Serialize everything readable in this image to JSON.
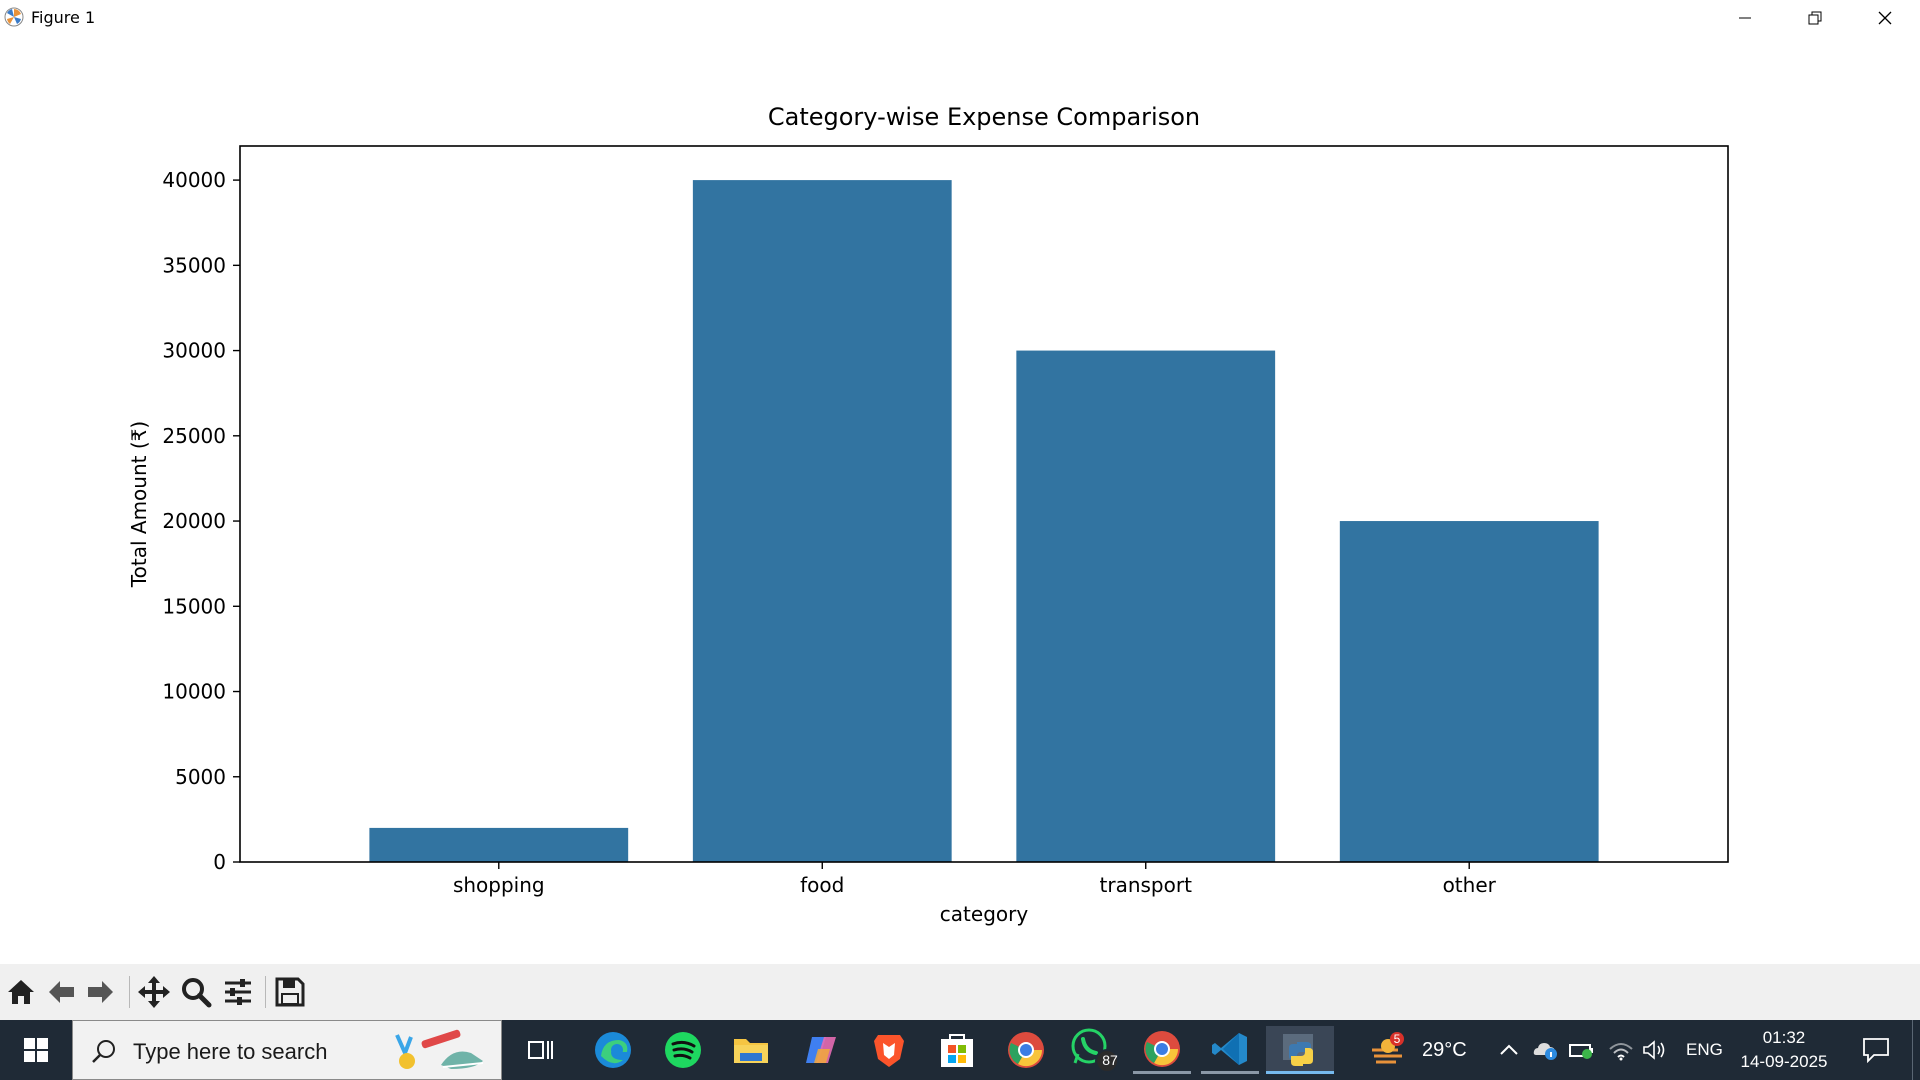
{
  "window": {
    "title": "Figure 1",
    "controls": [
      "minimize",
      "restore",
      "close"
    ]
  },
  "chart_data": {
    "type": "bar",
    "title": "Category-wise Expense Comparison",
    "xlabel": "category",
    "ylabel": "Total Amount (₹)",
    "categories": [
      "shopping",
      "food",
      "transport",
      "other"
    ],
    "values": [
      2000,
      40000,
      30000,
      20000
    ],
    "ylim": [
      0,
      42000
    ],
    "yticks": [
      0,
      5000,
      10000,
      15000,
      20000,
      25000,
      30000,
      35000,
      40000
    ],
    "bar_color": "#3274a1",
    "grid": false,
    "legend": "none"
  },
  "toolbar": {
    "buttons": [
      "home-icon",
      "back-icon",
      "forward-icon",
      "pan-icon",
      "zoom-icon",
      "configure-icon",
      "save-icon"
    ]
  },
  "taskbar": {
    "search_placeholder": "Type here to search",
    "apps": [
      "task-view",
      "edge",
      "spotify",
      "file-explorer",
      "copilot",
      "brave",
      "microsoft-store",
      "chrome",
      "whatsapp",
      "chrome",
      "vscode",
      "python"
    ],
    "whatsapp_badge": "87",
    "weather_badge": "5",
    "temperature": "29°C",
    "language": "ENG",
    "time": "01:32",
    "date": "14-09-2025"
  }
}
